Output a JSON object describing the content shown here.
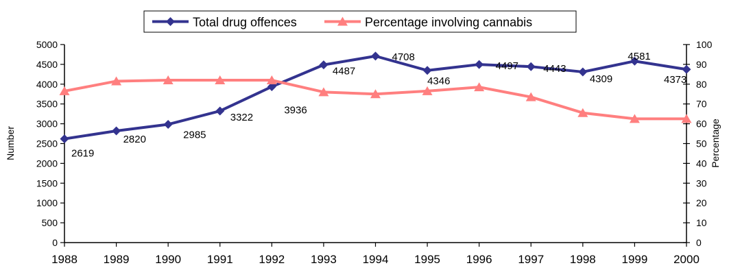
{
  "chart_data": {
    "type": "line",
    "title": "",
    "xlabel": "",
    "ylabel": "Number",
    "y2label": "Percentage",
    "categories": [
      "1988",
      "1989",
      "1990",
      "1991",
      "1992",
      "1993",
      "1994",
      "1995",
      "1996",
      "1997",
      "1998",
      "1999",
      "2000"
    ],
    "ylim": [
      0,
      5000
    ],
    "y_ticks": [
      "0",
      "500",
      "1000",
      "1500",
      "2000",
      "2500",
      "3000",
      "3500",
      "4000",
      "4500",
      "5000"
    ],
    "y2lim": [
      0,
      100
    ],
    "y2_ticks": [
      "0",
      "10",
      "20",
      "30",
      "40",
      "50",
      "60",
      "70",
      "80",
      "90",
      "100"
    ],
    "grid": false,
    "legend_position": "top",
    "series": [
      {
        "name": "Total drug offences",
        "axis": "left",
        "color": "#33338f",
        "marker": "diamond",
        "values": [
          2619,
          2820,
          2985,
          3322,
          3936,
          4487,
          4708,
          4346,
          4497,
          4443,
          4309,
          4581,
          4373
        ],
        "labels": [
          "2619",
          "2820",
          "2985",
          "3322",
          "3936",
          "4487",
          "4708",
          "4346",
          "4497",
          "4443",
          "4309",
          "4581",
          "4373"
        ]
      },
      {
        "name": "Percentage involving cannabis",
        "axis": "right",
        "color": "#ff7f7f",
        "marker": "triangle",
        "values": [
          76.5,
          81.5,
          82,
          82,
          82,
          76,
          75,
          76.5,
          78.5,
          73.5,
          65.5,
          62.5,
          62.5
        ]
      }
    ]
  }
}
